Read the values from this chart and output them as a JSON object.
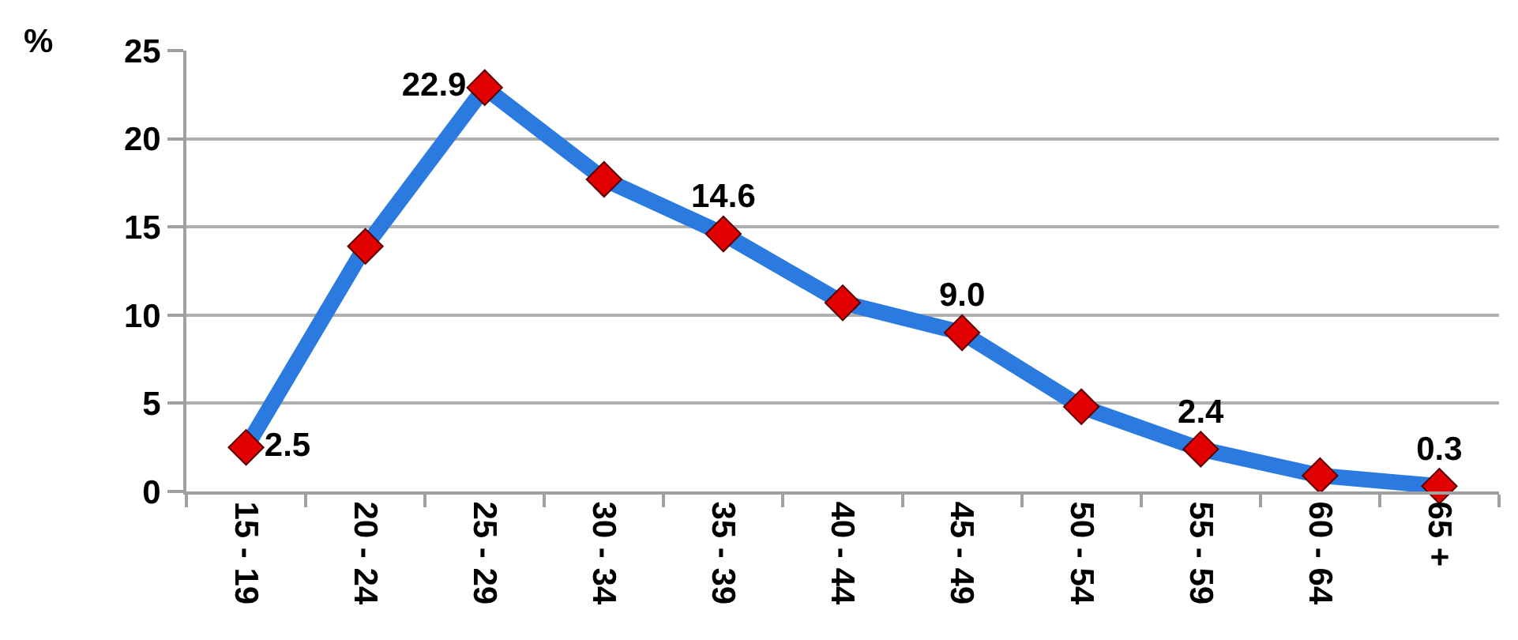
{
  "chart_data": {
    "type": "line",
    "ylabel": "%",
    "categories": [
      "15 - 19",
      "20 - 24",
      "25 - 29",
      "30 - 34",
      "35 - 39",
      "40 - 44",
      "45 - 49",
      "50 - 54",
      "55 - 59",
      "60 - 64",
      "65 +"
    ],
    "series": [
      {
        "color": "#2a7ae0",
        "colors": [
          "#e00000",
          "#e00000",
          "#e00000",
          "#e00000",
          "#e00000",
          "#e00000",
          "#e00000",
          "#e00000",
          "#e00000",
          "#e00000",
          "#e00000"
        ],
        "values": [
          2.5,
          13.9,
          22.9,
          17.7,
          14.6,
          10.7,
          9.0,
          4.8,
          2.4,
          0.9,
          0.3
        ],
        "value_labels": [
          "2.5",
          null,
          "22.9",
          null,
          "14.6",
          null,
          "9.0",
          null,
          "2.4",
          null,
          "0.3"
        ]
      }
    ],
    "ylim": [
      0,
      25
    ],
    "yticks": [
      0,
      5,
      10,
      15,
      20,
      25
    ],
    "grid": "y",
    "marker": "diamond",
    "line_style": "solid"
  }
}
